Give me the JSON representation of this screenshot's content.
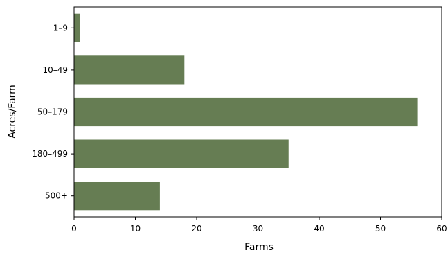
{
  "chart_data": {
    "type": "bar",
    "orientation": "horizontal",
    "categories": [
      "1–9",
      "10–49",
      "50–179",
      "180–499",
      "500+"
    ],
    "values": [
      1,
      18,
      56,
      35,
      14
    ],
    "xlabel": "Farms",
    "ylabel": "Acres/Farm",
    "xlim": [
      0,
      60
    ],
    "xticks": [
      0,
      10,
      20,
      30,
      40,
      50,
      60
    ],
    "grid": false,
    "legend": "none",
    "bar_color": "#667d53",
    "frame_color": "#000000"
  }
}
